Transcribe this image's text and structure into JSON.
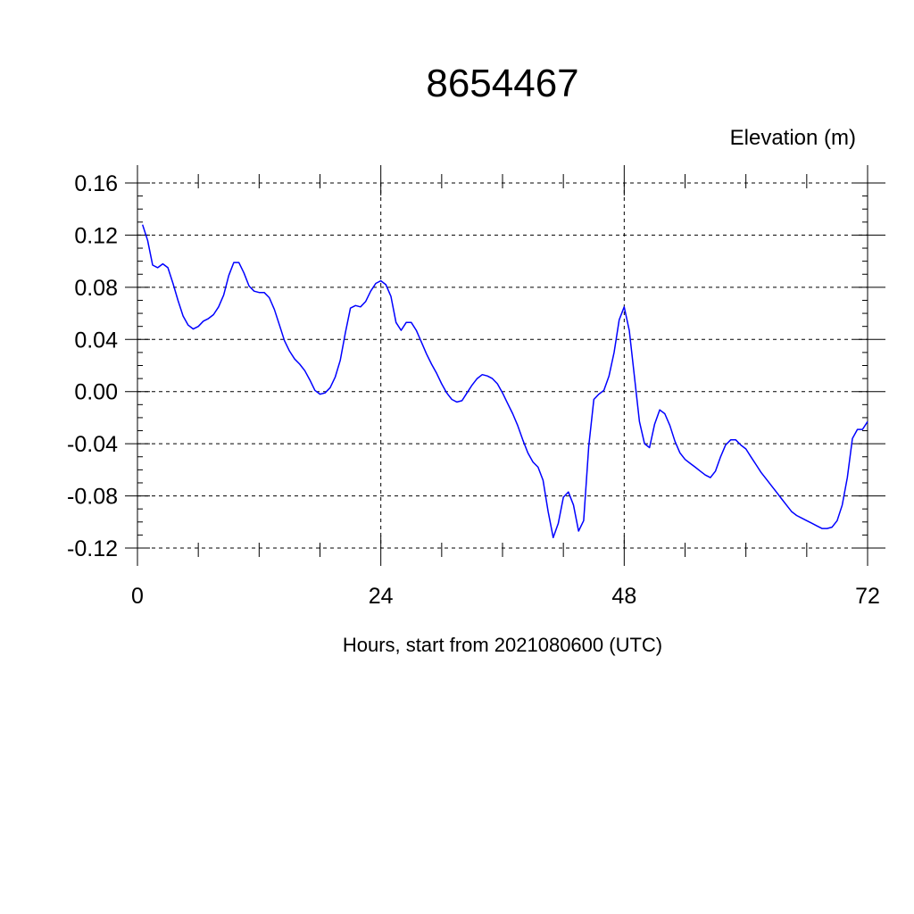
{
  "chart_data": {
    "type": "line",
    "title": "8654467",
    "ylabel": "Elevation (m)",
    "xlabel": "Hours, start from 2021080600 (UTC)",
    "xlim": [
      0,
      72
    ],
    "ylim": [
      -0.12,
      0.16
    ],
    "x_ticks": [
      0,
      24,
      48,
      72
    ],
    "x_tick_labels": [
      "0",
      "24",
      "48",
      "72"
    ],
    "y_ticks": [
      -0.12,
      -0.08,
      -0.04,
      0.0,
      0.04,
      0.08,
      0.12,
      0.16
    ],
    "y_tick_labels": [
      "-0.12",
      "-0.08",
      "-0.04",
      "0.00",
      "0.04",
      "0.08",
      "0.12",
      "0.16"
    ],
    "grid": true,
    "line_color": "#0000ff",
    "series": [
      {
        "x": [
          0.5,
          1.0,
          1.5,
          2.0,
          2.5,
          3.0,
          3.5,
          4.0,
          4.5,
          5.0,
          5.5,
          6.0,
          6.5,
          7.0,
          7.5,
          8.0,
          8.5,
          9.0,
          9.5,
          10.0,
          10.5,
          11.0,
          11.5,
          12.0,
          12.5,
          13.0,
          13.5,
          14.0,
          14.5,
          15.0,
          15.5,
          16.0,
          16.5,
          17.0,
          17.5,
          18.0,
          18.5,
          19.0,
          19.5,
          20.0,
          20.5,
          21.0,
          21.5,
          22.0,
          22.5,
          23.0,
          23.5,
          24.0,
          24.5,
          25.0,
          25.5,
          26.0,
          26.5,
          27.0,
          27.5,
          28.0,
          28.5,
          29.0,
          29.5,
          30.0,
          30.5,
          31.0,
          31.5,
          32.0,
          32.5,
          33.0,
          33.5,
          34.0,
          34.5,
          35.0,
          35.5,
          36.0,
          36.5,
          37.0,
          37.5,
          38.0,
          38.5,
          39.0,
          39.5,
          40.0,
          40.5,
          41.0,
          41.5,
          42.0,
          42.5,
          43.0,
          43.5,
          44.0,
          44.5,
          45.0,
          45.5,
          46.0,
          46.5,
          47.0,
          47.5,
          48.0,
          48.5,
          49.0,
          49.5,
          50.0,
          50.5,
          51.0,
          51.5,
          52.0,
          52.5,
          53.0,
          53.5,
          54.0,
          54.5,
          55.0,
          55.5,
          56.0,
          56.5,
          57.0,
          57.5,
          58.0,
          58.5,
          59.0,
          59.5,
          60.0,
          60.5,
          61.0,
          61.5,
          62.0,
          62.5,
          63.0,
          63.5,
          64.0,
          64.5,
          65.0,
          65.5,
          66.0,
          66.5,
          67.0,
          67.5,
          68.0,
          68.5,
          69.0,
          69.5,
          70.0,
          70.5,
          71.0,
          71.5,
          72.0
        ],
        "y": [
          0.128,
          0.116,
          0.097,
          0.095,
          0.098,
          0.095,
          0.083,
          0.07,
          0.058,
          0.051,
          0.048,
          0.05,
          0.054,
          0.056,
          0.059,
          0.065,
          0.074,
          0.089,
          0.099,
          0.099,
          0.091,
          0.081,
          0.077,
          0.076,
          0.076,
          0.072,
          0.063,
          0.051,
          0.039,
          0.031,
          0.025,
          0.021,
          0.016,
          0.009,
          0.001,
          -0.002,
          -0.001,
          0.003,
          0.011,
          0.024,
          0.045,
          0.064,
          0.066,
          0.065,
          0.069,
          0.077,
          0.083,
          0.085,
          0.082,
          0.073,
          0.053,
          0.047,
          0.053,
          0.053,
          0.047,
          0.038,
          0.029,
          0.021,
          0.014,
          0.006,
          -0.001,
          -0.006,
          -0.008,
          -0.007,
          -0.001,
          0.005,
          0.01,
          0.013,
          0.012,
          0.01,
          0.006,
          -0.001,
          -0.009,
          -0.017,
          -0.026,
          -0.037,
          -0.047,
          -0.054,
          -0.058,
          -0.068,
          -0.092,
          -0.112,
          -0.101,
          -0.081,
          -0.077,
          -0.087,
          -0.107,
          -0.099,
          -0.042,
          -0.006,
          -0.002,
          0.001,
          0.012,
          0.03,
          0.055,
          0.065,
          0.047,
          0.012,
          -0.023,
          -0.04,
          -0.043,
          -0.025,
          -0.014,
          -0.017,
          -0.026,
          -0.038,
          -0.047,
          -0.052,
          -0.055,
          -0.058,
          -0.061,
          -0.064,
          -0.066,
          -0.061,
          -0.05,
          -0.041,
          -0.037,
          -0.037,
          -0.041,
          -0.044,
          -0.05,
          -0.056,
          -0.062,
          -0.067,
          -0.072,
          -0.077,
          -0.082,
          -0.087,
          -0.092,
          -0.095,
          -0.097,
          -0.099,
          -0.101,
          -0.103,
          -0.105,
          -0.105,
          -0.104,
          -0.099,
          -0.087,
          -0.066,
          -0.036,
          -0.029,
          -0.029,
          -0.023
        ]
      }
    ]
  }
}
